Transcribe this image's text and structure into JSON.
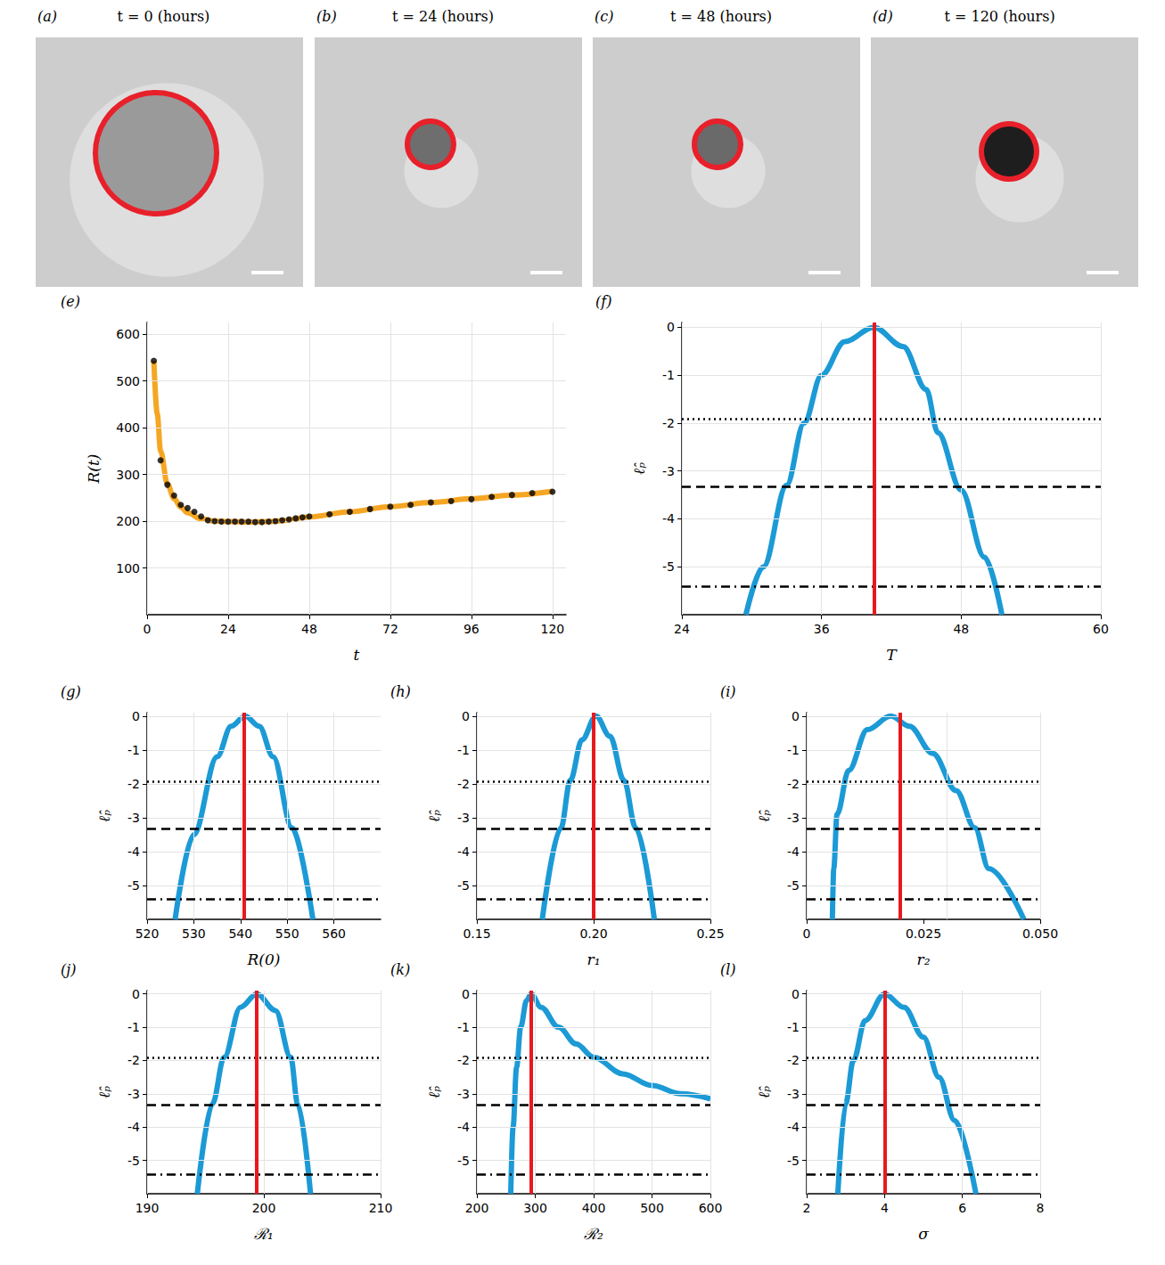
{
  "images": [
    {
      "label": "(a)",
      "title": "t = 0 (hours)"
    },
    {
      "label": "(b)",
      "title": "t = 24 (hours)"
    },
    {
      "label": "(c)",
      "title": "t = 48 (hours)"
    },
    {
      "label": "(d)",
      "title": "t = 120 (hours)"
    }
  ],
  "chart_data": [
    {
      "panel": "(e)",
      "type": "line",
      "xlabel": "t",
      "ylabel": "R(t)",
      "xlim": [
        0,
        124
      ],
      "xticks": [
        0,
        24,
        48,
        72,
        96,
        120
      ],
      "ylim": [
        0,
        625
      ],
      "yticks": [
        100,
        200,
        300,
        400,
        500,
        600
      ],
      "grid": true,
      "series": [
        {
          "type": "line",
          "color": "#f5a623",
          "x": [
            2,
            3,
            4,
            6,
            8,
            10,
            12,
            16,
            20,
            24,
            30,
            36,
            40,
            48,
            60,
            72,
            84,
            96,
            108,
            120
          ],
          "values": [
            543,
            430,
            350,
            280,
            248,
            230,
            218,
            205,
            200,
            199,
            198,
            199,
            201,
            209,
            220,
            231,
            240,
            248,
            256,
            264
          ]
        },
        {
          "type": "scatter",
          "color": "#000000",
          "marker": "circle",
          "x": [
            2,
            4,
            6,
            8,
            10,
            12,
            14,
            16,
            18,
            20,
            22,
            24,
            26,
            28,
            30,
            32,
            34,
            36,
            38,
            40,
            42,
            44,
            46,
            48,
            54,
            60,
            66,
            72,
            78,
            84,
            90,
            96,
            102,
            108,
            114,
            120
          ],
          "values": [
            543,
            330,
            278,
            255,
            235,
            228,
            220,
            210,
            202,
            200,
            199,
            199,
            199,
            199,
            199,
            198,
            198,
            199,
            200,
            202,
            204,
            206,
            208,
            210,
            215,
            220,
            226,
            231,
            235,
            240,
            243,
            247,
            252,
            256,
            260,
            263
          ]
        }
      ]
    },
    {
      "panel": "(f)",
      "type": "line",
      "xlabel": "T",
      "ylabel": "ℓ̂ₚ",
      "xlim": [
        24,
        60
      ],
      "xticks": [
        24,
        36,
        48,
        60
      ],
      "ylim": [
        -6,
        0.1
      ],
      "yticks": [
        -5,
        -4,
        -3,
        -2,
        -1,
        0
      ],
      "grid": true,
      "series": [
        {
          "type": "line",
          "color": "#1c9ad6",
          "x": [
            29.5,
            31,
            33,
            34.5,
            36,
            38,
            40.5,
            43,
            45,
            46,
            48,
            50,
            51.5
          ],
          "values": [
            -6,
            -5,
            -3.3,
            -2,
            -1,
            -0.3,
            0,
            -0.4,
            -1.3,
            -2.2,
            -3.4,
            -4.8,
            -6
          ]
        }
      ],
      "mle": {
        "value": 40.5,
        "color": "#e8191e"
      },
      "thresholds": [
        {
          "value": -1.92,
          "line_style": "dotted"
        },
        {
          "value": -3.32,
          "line_style": "dashed"
        },
        {
          "value": -5.41,
          "line_style": "dashdot"
        }
      ]
    },
    {
      "panel": "(g)",
      "type": "line",
      "xlabel": "R(0)",
      "ylabel": "ℓ̂ₚ",
      "xlim": [
        520,
        570
      ],
      "xticks": [
        520,
        530,
        540,
        550,
        560
      ],
      "ylim": [
        -6,
        0.1
      ],
      "yticks": [
        -5,
        -4,
        -3,
        -2,
        -1,
        0
      ],
      "grid": true,
      "series": [
        {
          "type": "line",
          "color": "#1c9ad6",
          "x": [
            526,
            530,
            535,
            538,
            541,
            544,
            547,
            551,
            555.5
          ],
          "values": [
            -6,
            -3.5,
            -1.2,
            -0.3,
            0,
            -0.3,
            -1.2,
            -3.3,
            -6
          ]
        }
      ],
      "mle": {
        "value": 540.8,
        "color": "#e8191e"
      },
      "thresholds": [
        {
          "value": -1.92,
          "line_style": "dotted"
        },
        {
          "value": -3.32,
          "line_style": "dashed"
        },
        {
          "value": -5.41,
          "line_style": "dashdot"
        }
      ]
    },
    {
      "panel": "(h)",
      "type": "line",
      "xlabel": "r₁",
      "ylabel": "ℓ̂ₚ",
      "xlim": [
        0.15,
        0.25
      ],
      "xticks": [
        0.15,
        {
          "value": 0.2,
          "label": "0.20"
        },
        0.25
      ],
      "ylim": [
        -6,
        0.1
      ],
      "yticks": [
        -5,
        -4,
        -3,
        -2,
        -1,
        0
      ],
      "grid": true,
      "series": [
        {
          "type": "line",
          "color": "#1c9ad6",
          "x": [
            0.178,
            0.186,
            0.19,
            0.195,
            0.201,
            0.207,
            0.213,
            0.218,
            0.226
          ],
          "values": [
            -6,
            -3.3,
            -1.9,
            -0.7,
            0,
            -0.6,
            -1.9,
            -3.3,
            -6
          ]
        }
      ],
      "mle": {
        "value": 0.201,
        "color": "#e8191e"
      },
      "thresholds": [
        {
          "value": -1.92,
          "line_style": "dotted"
        },
        {
          "value": -3.32,
          "line_style": "dashed"
        },
        {
          "value": -5.41,
          "line_style": "dashdot"
        }
      ]
    },
    {
      "panel": "(i)",
      "type": "line",
      "xlabel": "r₂",
      "ylabel": "ℓ̂ₚ",
      "xlim": [
        0,
        0.05
      ],
      "xticks": [
        0,
        0.025,
        {
          "value": 0.05,
          "label": "0.050"
        }
      ],
      "ylim": [
        -6,
        0.1
      ],
      "yticks": [
        -5,
        -4,
        -3,
        -2,
        -1,
        0
      ],
      "grid": true,
      "series": [
        {
          "type": "line",
          "color": "#1c9ad6",
          "x": [
            0.0055,
            0.0058,
            0.0065,
            0.009,
            0.013,
            0.018,
            0.022,
            0.027,
            0.032,
            0.036,
            0.039,
            0.0465
          ],
          "values": [
            -6,
            -4.5,
            -2.9,
            -1.6,
            -0.4,
            0,
            -0.3,
            -1.1,
            -2.2,
            -3.3,
            -4.5,
            -6
          ]
        }
      ],
      "mle": {
        "value": 0.018,
        "color": "#e8191e"
      },
      "thresholds": [
        {
          "value": -1.92,
          "line_style": "dotted"
        },
        {
          "value": -3.32,
          "line_style": "dashed"
        },
        {
          "value": -5.41,
          "line_style": "dashdot"
        }
      ]
    },
    {
      "panel": "(j)",
      "type": "line",
      "xlabel": "ℛ₁",
      "ylabel": "ℓ̂ₚ",
      "xlim": [
        190,
        210
      ],
      "xticks": [
        190,
        200,
        210
      ],
      "ylim": [
        -6,
        0.1
      ],
      "yticks": [
        -5,
        -4,
        -3,
        -2,
        -1,
        0
      ],
      "grid": true,
      "series": [
        {
          "type": "line",
          "color": "#1c9ad6",
          "x": [
            194.3,
            195.6,
            196.6,
            198,
            199.4,
            201,
            202.3,
            202.9,
            204
          ],
          "values": [
            -6,
            -3.3,
            -1.9,
            -0.4,
            0,
            -0.5,
            -1.9,
            -3.3,
            -6
          ]
        }
      ],
      "mle": {
        "value": 199.4,
        "color": "#e8191e"
      },
      "thresholds": [
        {
          "value": -1.92,
          "line_style": "dotted"
        },
        {
          "value": -3.32,
          "line_style": "dashed"
        },
        {
          "value": -5.41,
          "line_style": "dashdot"
        }
      ]
    },
    {
      "panel": "(k)",
      "type": "line",
      "xlabel": "ℛ₂",
      "ylabel": "ℓ̂ₚ",
      "xlim": [
        200,
        600
      ],
      "xticks": [
        200,
        300,
        400,
        500,
        600
      ],
      "ylim": [
        -6,
        0.1
      ],
      "yticks": [
        -5,
        -4,
        -3,
        -2,
        -1,
        0
      ],
      "grid": true,
      "series": [
        {
          "type": "line",
          "color": "#1c9ad6",
          "x": [
            258,
            262,
            268,
            275,
            285,
            293,
            310,
            340,
            370,
            400,
            450,
            500,
            550,
            600
          ],
          "values": [
            -6,
            -4,
            -2.2,
            -1,
            -0.2,
            0,
            -0.4,
            -1,
            -1.5,
            -1.9,
            -2.4,
            -2.75,
            -3,
            -3.15
          ]
        }
      ],
      "mle": {
        "value": 293,
        "color": "#e8191e"
      },
      "thresholds": [
        {
          "value": -1.92,
          "line_style": "dotted"
        },
        {
          "value": -3.32,
          "line_style": "dashed"
        },
        {
          "value": -5.41,
          "line_style": "dashdot"
        }
      ]
    },
    {
      "panel": "(l)",
      "type": "line",
      "xlabel": "σ",
      "ylabel": "ℓ̂ₚ",
      "xlim": [
        2,
        8
      ],
      "xticks": [
        2,
        4,
        6,
        8
      ],
      "ylim": [
        -6,
        0.1
      ],
      "yticks": [
        -5,
        -4,
        -3,
        -2,
        -1,
        0
      ],
      "grid": true,
      "series": [
        {
          "type": "line",
          "color": "#1c9ad6",
          "x": [
            2.8,
            3.0,
            3.2,
            3.5,
            4.0,
            4.5,
            5.0,
            5.4,
            5.8,
            6.35
          ],
          "values": [
            -6,
            -3.3,
            -2,
            -0.8,
            0,
            -0.4,
            -1.3,
            -2.5,
            -3.8,
            -6
          ]
        }
      ],
      "mle": {
        "value": 4.0,
        "color": "#e8191e"
      },
      "thresholds": [
        {
          "value": -1.92,
          "line_style": "dotted"
        },
        {
          "value": -3.32,
          "line_style": "dashed"
        },
        {
          "value": -5.41,
          "line_style": "dashdot"
        }
      ]
    }
  ]
}
